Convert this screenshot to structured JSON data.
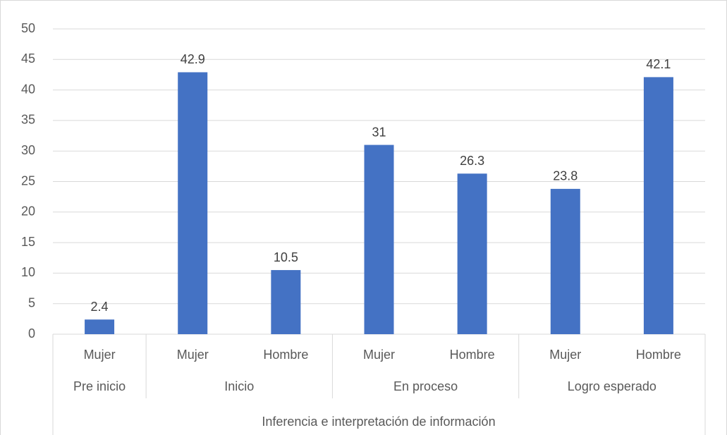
{
  "chart_data": {
    "type": "bar",
    "color": "#4472c4",
    "category_group": "Inferencia e interpretación de información",
    "groups": [
      {
        "name": "Pre inicio",
        "categories": [
          "Mujer"
        ],
        "values": [
          2.4
        ]
      },
      {
        "name": "Inicio",
        "categories": [
          "Mujer",
          "Hombre"
        ],
        "values": [
          42.9,
          10.5
        ]
      },
      {
        "name": "En proceso",
        "categories": [
          "Mujer",
          "Hombre"
        ],
        "values": [
          31,
          26.3
        ]
      },
      {
        "name": "Logro esperado",
        "categories": [
          "Mujer",
          "Hombre"
        ],
        "values": [
          23.8,
          42.1
        ]
      }
    ],
    "ylim": [
      0,
      50
    ],
    "yticks": [
      0,
      5,
      10,
      15,
      20,
      25,
      30,
      35,
      40,
      45,
      50
    ],
    "grid": true
  }
}
